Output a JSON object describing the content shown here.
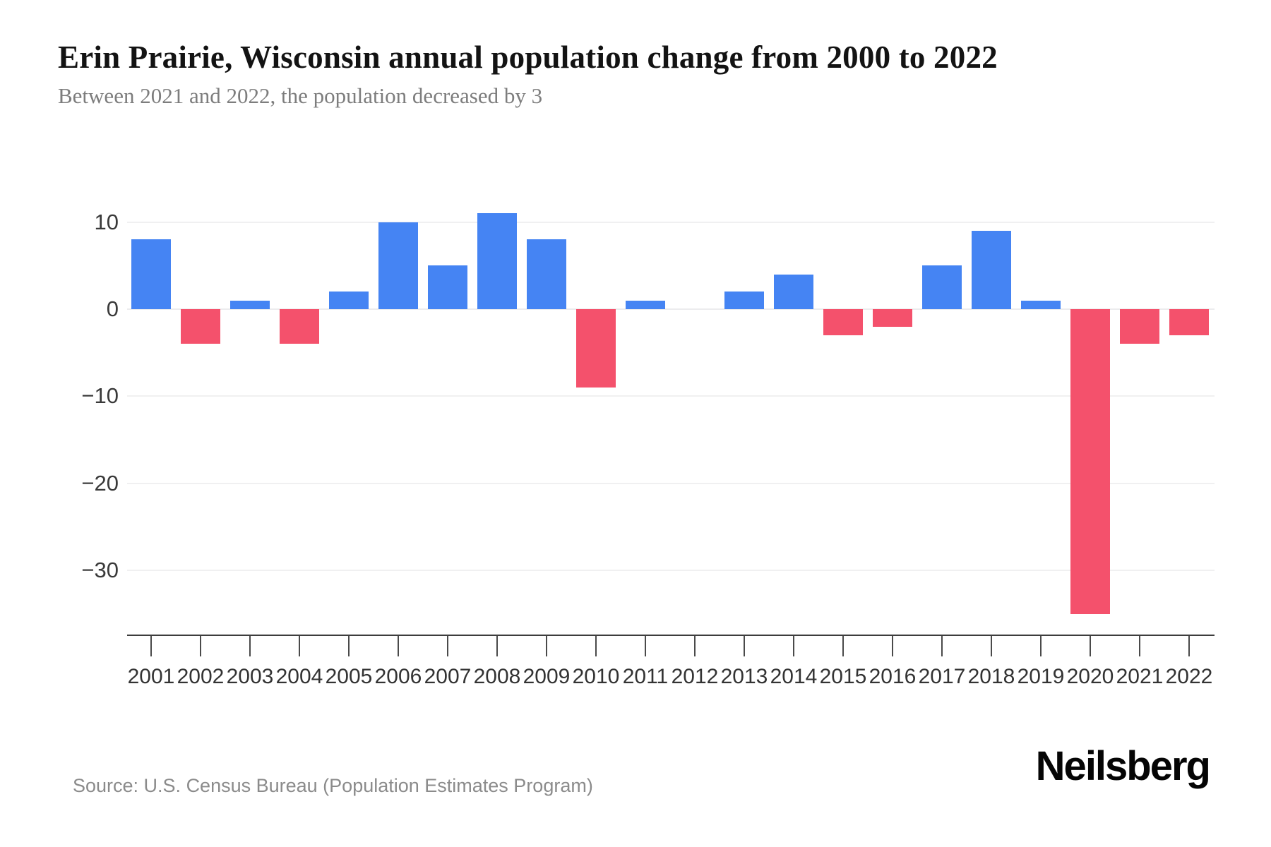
{
  "page": {
    "title": "Erin Prairie, Wisconsin annual population change from 2000 to 2022",
    "subtitle": "Between 2021 and 2022, the population decreased by 3",
    "source": "Source: U.S. Census Bureau (Population Estimates Program)",
    "brand": "Neilsberg"
  },
  "colors": {
    "positive_bar": "#4584f3",
    "negative_bar": "#f4516c",
    "gridline": "#f0f0f1",
    "axis": "#3d3d3d",
    "tick_label": "#333333"
  },
  "chart_data": {
    "type": "bar",
    "title": "Erin Prairie, Wisconsin annual population change from 2000 to 2022",
    "subtitle": "Between 2021 and 2022, the population decreased by 3",
    "categories": [
      "2001",
      "2002",
      "2003",
      "2004",
      "2005",
      "2006",
      "2007",
      "2008",
      "2009",
      "2010",
      "2011",
      "2012",
      "2013",
      "2014",
      "2015",
      "2016",
      "2017",
      "2018",
      "2019",
      "2020",
      "2021",
      "2022"
    ],
    "values": [
      8,
      -4,
      1,
      -4,
      2,
      10,
      5,
      11,
      8,
      -9,
      1,
      0,
      2,
      4,
      -3,
      -2,
      5,
      9,
      1,
      -35,
      -4,
      -3
    ],
    "xlabel": "",
    "ylabel": "",
    "yticks": [
      10,
      0,
      -10,
      -20,
      -30
    ],
    "ylim": [
      -37,
      13
    ],
    "grid": true,
    "legend": false,
    "positive_color": "#4584f3",
    "negative_color": "#f4516c"
  }
}
